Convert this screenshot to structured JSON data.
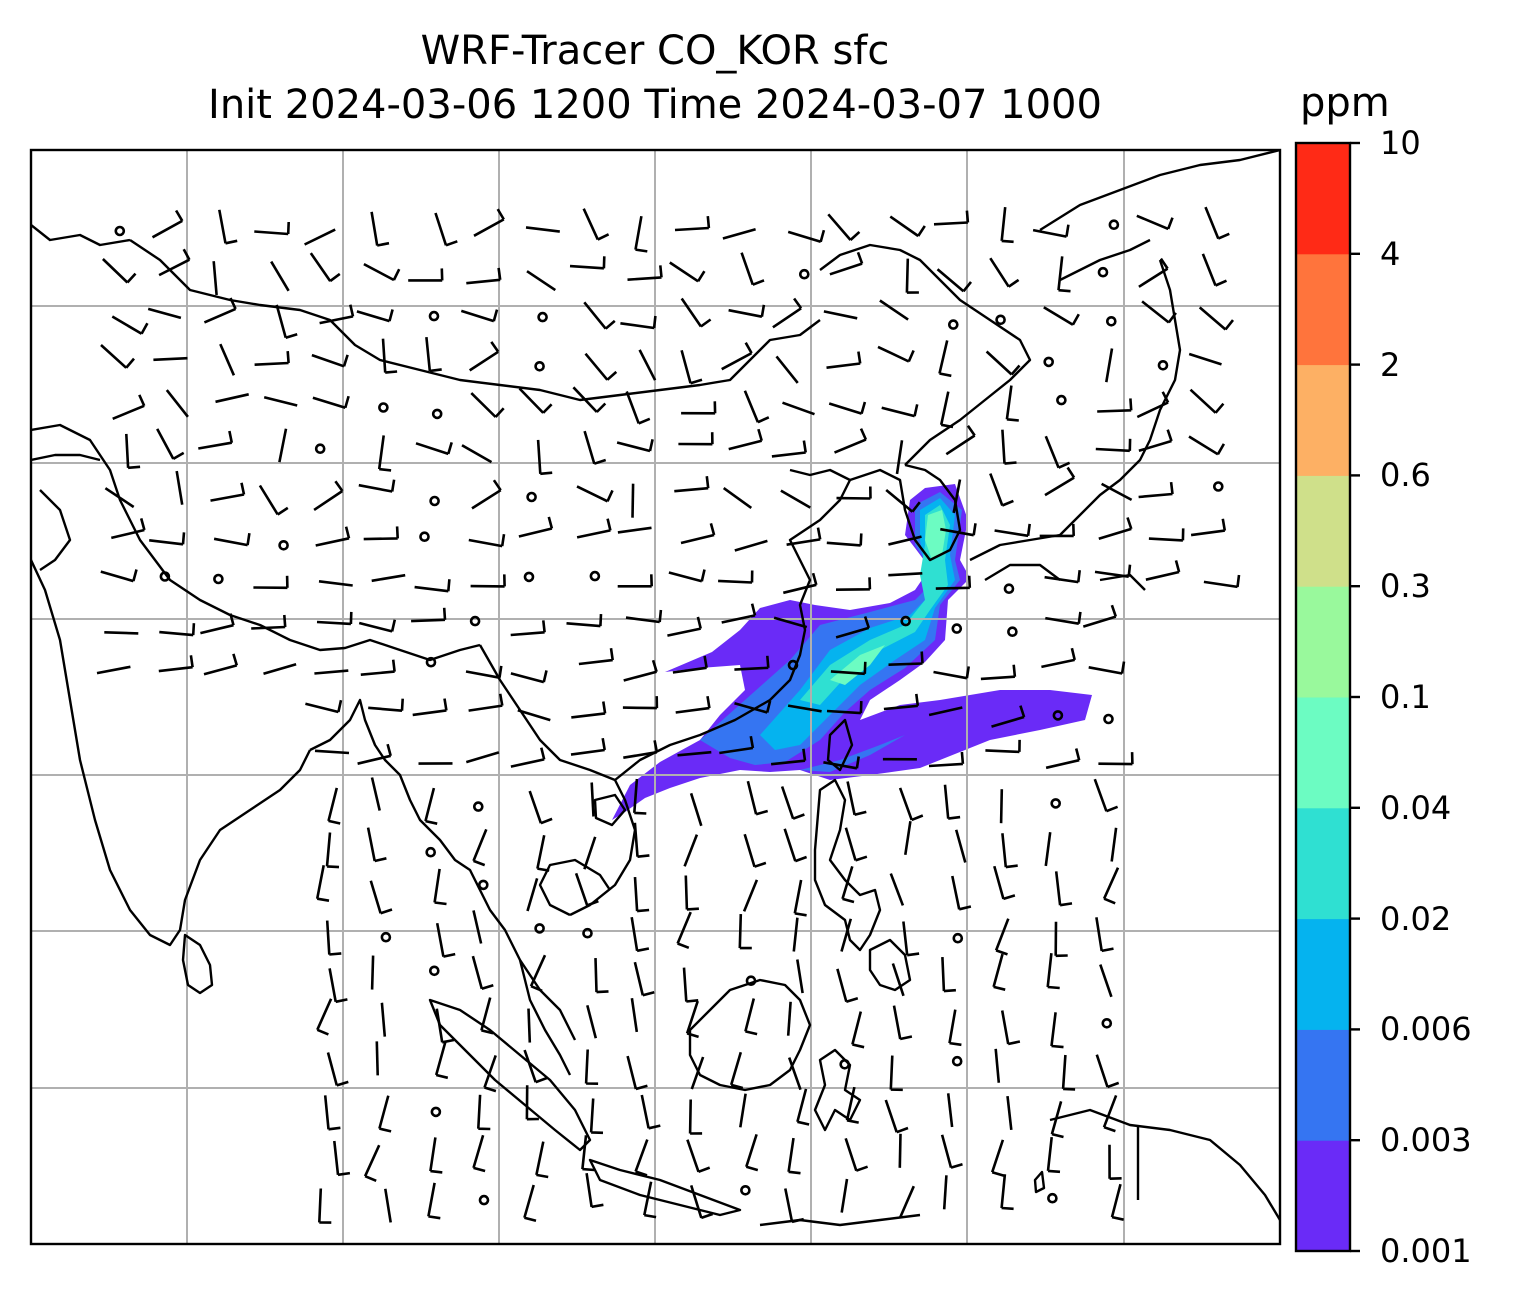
{
  "title": {
    "line1": "WRF-Tracer CO_KOR sfc",
    "line2": "Init 2024-03-06 1200 Time 2024-03-07 1000"
  },
  "colorbar": {
    "unit": "ppm",
    "levels": [
      "0.001",
      "0.003",
      "0.006",
      "0.02",
      "0.04",
      "0.1",
      "0.3",
      "0.6",
      "2",
      "4",
      "10"
    ],
    "colors": [
      "#6a2bf7",
      "#3575f2",
      "#05b3ef",
      "#2fe0d2",
      "#6cfcc2",
      "#99f99c",
      "#cfe08a",
      "#fdb064",
      "#ff743c",
      "#ff2a16"
    ]
  },
  "map": {
    "region": "East and Southeast Asia",
    "gridlines": true,
    "coastline_color": "#000000",
    "gridline_color": "#b0b0b0",
    "wind_barb_color": "#000000"
  }
}
